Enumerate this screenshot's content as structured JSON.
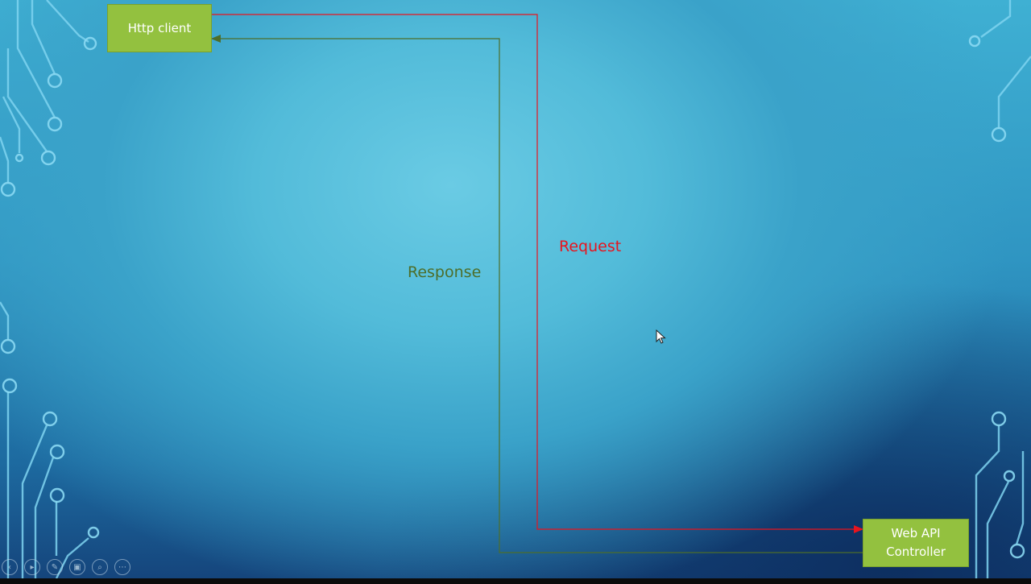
{
  "nodes": {
    "http_client": "Http client",
    "web_api_controller": "Web API\nController"
  },
  "edges": {
    "request": {
      "label": "Request",
      "color": "#e8141e"
    },
    "response": {
      "label": "Response",
      "color": "#4d6e2a"
    }
  },
  "colors": {
    "node_fill": "#93c13f",
    "node_border": "#7aa12c",
    "node_text": "#ffffff",
    "circuit": "#7fd4f0"
  },
  "toolbar": {
    "buttons": [
      {
        "name": "previous-slide",
        "icon": "chevron-left-icon",
        "glyph": "‹"
      },
      {
        "name": "next-slide",
        "icon": "play-icon",
        "glyph": "▸"
      },
      {
        "name": "pen-tool",
        "icon": "pen-icon",
        "glyph": "✎"
      },
      {
        "name": "see-all-slides",
        "icon": "slides-icon",
        "glyph": "▣"
      },
      {
        "name": "zoom",
        "icon": "magnifier-icon",
        "glyph": "⌕"
      },
      {
        "name": "more-options",
        "icon": "ellipsis-icon",
        "glyph": "⋯"
      }
    ]
  }
}
